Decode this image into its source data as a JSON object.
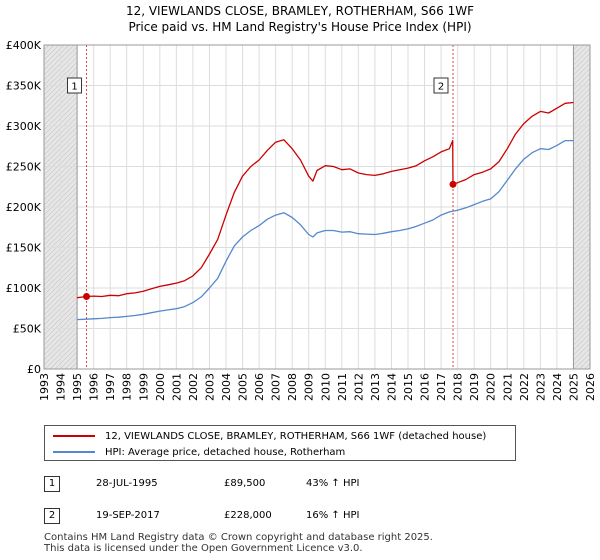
{
  "title_line1": "12, VIEWLANDS CLOSE, BRAMLEY, ROTHERHAM, S66 1WF",
  "title_line2": "Price paid vs. HM Land Registry's House Price Index (HPI)",
  "legend": {
    "property": "12, VIEWLANDS CLOSE, BRAMLEY, ROTHERHAM, S66 1WF (detached house)",
    "hpi": "HPI: Average price, detached house, Rotherham"
  },
  "sales": [
    {
      "num": "1",
      "date": "28-JUL-1995",
      "price": "£89,500",
      "hpi": "43% ↑ HPI"
    },
    {
      "num": "2",
      "date": "19-SEP-2017",
      "price": "£228,000",
      "hpi": "16% ↑ HPI"
    }
  ],
  "footer": {
    "line1": "Contains HM Land Registry data © Crown copyright and database right 2025.",
    "line2": "This data is licensed under the Open Government Licence v3.0."
  },
  "colors": {
    "property": "#cc0000",
    "hpi": "#5588cc",
    "grid": "#dddddd",
    "shade": "#e6e6e6",
    "marker_line": "#dd4444"
  },
  "chart_data": {
    "type": "line",
    "xlim": [
      1993,
      2026
    ],
    "ylim": [
      0,
      400000
    ],
    "x_ticks": [
      1993,
      1994,
      1995,
      1996,
      1997,
      1998,
      1999,
      2000,
      2001,
      2002,
      2003,
      2004,
      2005,
      2006,
      2007,
      2008,
      2009,
      2010,
      2011,
      2012,
      2013,
      2014,
      2015,
      2016,
      2017,
      2018,
      2019,
      2020,
      2021,
      2022,
      2023,
      2024,
      2025,
      2026
    ],
    "y_ticks": [
      0,
      50000,
      100000,
      150000,
      200000,
      250000,
      300000,
      350000,
      400000
    ],
    "y_tick_labels": [
      "£0",
      "£50K",
      "£100K",
      "£150K",
      "£200K",
      "£250K",
      "£300K",
      "£350K",
      "£400K"
    ],
    "shaded_before": 1995.0,
    "shaded_after": 2025.0,
    "series": [
      {
        "name": "12, VIEWLANDS CLOSE, BRAMLEY, ROTHERHAM, S66 1WF (detached house)",
        "x": [
          1995.0,
          1995.57,
          1996.0,
          1996.5,
          1997.0,
          1997.5,
          1998.0,
          1998.5,
          1999.0,
          1999.5,
          2000.0,
          2000.5,
          2001.0,
          2001.5,
          2002.0,
          2002.5,
          2003.0,
          2003.5,
          2004.0,
          2004.5,
          2005.0,
          2005.5,
          2006.0,
          2006.5,
          2007.0,
          2007.5,
          2008.0,
          2008.5,
          2009.0,
          2009.25,
          2009.5,
          2010.0,
          2010.5,
          2011.0,
          2011.5,
          2012.0,
          2012.5,
          2013.0,
          2013.5,
          2014.0,
          2014.5,
          2015.0,
          2015.5,
          2016.0,
          2016.5,
          2017.0,
          2017.5,
          2017.7,
          2017.72,
          2018.0,
          2018.5,
          2019.0,
          2019.5,
          2020.0,
          2020.5,
          2021.0,
          2021.5,
          2022.0,
          2022.5,
          2023.0,
          2023.5,
          2024.0,
          2024.5,
          2025.0
        ],
        "y": [
          88000,
          89500,
          90000,
          89500,
          91000,
          90500,
          93000,
          94000,
          96000,
          99000,
          102000,
          104000,
          106000,
          109000,
          115000,
          125000,
          142000,
          160000,
          190000,
          218000,
          238000,
          250000,
          258000,
          270000,
          280000,
          283000,
          272000,
          258000,
          238000,
          232000,
          245000,
          251000,
          250000,
          246000,
          247000,
          242000,
          240000,
          239000,
          241000,
          244000,
          246000,
          248000,
          251000,
          257000,
          262000,
          268000,
          272000,
          282000,
          228000,
          230000,
          234000,
          240000,
          243000,
          247000,
          256000,
          272000,
          290000,
          303000,
          312000,
          318000,
          316000,
          322000,
          328000,
          329000
        ]
      },
      {
        "name": "HPI: Average price, detached house, Rotherham",
        "x": [
          1995.0,
          1995.5,
          1996.0,
          1996.5,
          1997.0,
          1997.5,
          1998.0,
          1998.5,
          1999.0,
          1999.5,
          2000.0,
          2000.5,
          2001.0,
          2001.5,
          2002.0,
          2002.5,
          2003.0,
          2003.5,
          2004.0,
          2004.5,
          2005.0,
          2005.5,
          2006.0,
          2006.5,
          2007.0,
          2007.5,
          2008.0,
          2008.5,
          2009.0,
          2009.25,
          2009.5,
          2010.0,
          2010.5,
          2011.0,
          2011.5,
          2012.0,
          2012.5,
          2013.0,
          2013.5,
          2014.0,
          2014.5,
          2015.0,
          2015.5,
          2016.0,
          2016.5,
          2017.0,
          2017.5,
          2018.0,
          2018.5,
          2019.0,
          2019.5,
          2020.0,
          2020.5,
          2021.0,
          2021.5,
          2022.0,
          2022.5,
          2023.0,
          2023.5,
          2024.0,
          2024.5,
          2025.0
        ],
        "y": [
          61000,
          61500,
          62000,
          62500,
          63500,
          64000,
          65000,
          66000,
          67500,
          69500,
          71500,
          73000,
          74500,
          77000,
          82000,
          89000,
          100000,
          112000,
          133000,
          152000,
          163000,
          171000,
          177000,
          185000,
          190000,
          193000,
          187000,
          178000,
          166000,
          163000,
          168000,
          171000,
          171000,
          169000,
          169500,
          167000,
          166500,
          166000,
          167500,
          169500,
          171000,
          173000,
          176000,
          180000,
          184000,
          190000,
          194000,
          196000,
          199000,
          203000,
          207000,
          210000,
          219000,
          233000,
          247000,
          259000,
          267000,
          272000,
          271000,
          276000,
          282000,
          282000
        ]
      }
    ],
    "markers": [
      {
        "label": "1",
        "x": 1995.57,
        "y": 89500
      },
      {
        "label": "2",
        "x": 2017.72,
        "y": 228000
      }
    ]
  }
}
